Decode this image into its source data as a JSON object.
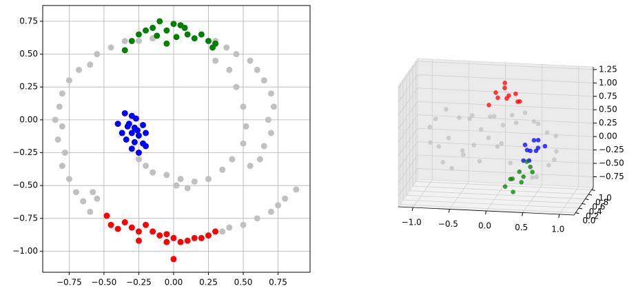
{
  "chart_data": [
    {
      "type": "scatter",
      "grid": true,
      "xlim": [
        -0.94,
        0.98
      ],
      "ylim": [
        -1.16,
        0.87
      ],
      "xticks": [
        {
          "value": -0.75,
          "label": "−0.75"
        },
        {
          "value": -0.5,
          "label": "−0.50"
        },
        {
          "value": -0.25,
          "label": "−0.25"
        },
        {
          "value": 0,
          "label": "0.00"
        },
        {
          "value": 0.25,
          "label": "0.25"
        },
        {
          "value": 0.5,
          "label": "0.50"
        },
        {
          "value": 0.75,
          "label": "0.75"
        }
      ],
      "yticks": [
        {
          "value": -1,
          "label": "−1.00"
        },
        {
          "value": -0.75,
          "label": "−0.75"
        },
        {
          "value": -0.5,
          "label": "−0.50"
        },
        {
          "value": -0.25,
          "label": "−0.25"
        },
        {
          "value": 0,
          "label": "0.00"
        },
        {
          "value": 0.25,
          "label": "0.25"
        },
        {
          "value": 0.5,
          "label": "0.50"
        },
        {
          "value": 0.75,
          "label": "0.75"
        }
      ],
      "series": [
        {
          "color": "#c0c0c0",
          "x": [
            -0.15,
            -0.25,
            -0.35,
            -0.45,
            -0.55,
            -0.6,
            -0.68,
            -0.75,
            -0.8,
            -0.82,
            -0.85,
            -0.8,
            -0.83,
            -0.78,
            -0.8,
            -0.75,
            -0.7,
            -0.65,
            -0.6,
            0.3,
            0.38,
            0.45,
            0.55,
            0.6,
            0.65,
            0.7,
            0.72,
            0.68,
            0.7,
            0.65,
            0.62,
            0.55,
            0.88,
            0.8,
            0.75,
            0.7,
            0.6,
            0.5,
            0.4,
            0.35,
            -0.25,
            -0.2,
            -0.15,
            -0.05,
            0.05,
            0.15,
            0.25,
            0.35,
            0.42,
            0.5,
            0.52,
            0.5,
            0.45,
            0.4,
            0.3,
            0.02,
            0.1,
            -0.58,
            -0.55
          ],
          "y": [
            0.62,
            0.6,
            0.6,
            0.55,
            0.5,
            0.42,
            0.38,
            0.3,
            0.2,
            0.1,
            0.0,
            -0.05,
            -0.15,
            -0.25,
            -0.35,
            -0.45,
            -0.55,
            -0.62,
            -0.7,
            0.6,
            0.55,
            0.5,
            0.45,
            0.38,
            0.3,
            0.2,
            0.1,
            0.0,
            -0.1,
            -0.2,
            -0.3,
            -0.35,
            -0.53,
            -0.6,
            -0.65,
            -0.7,
            -0.75,
            -0.8,
            -0.82,
            -0.85,
            -0.3,
            -0.35,
            -0.4,
            -0.42,
            -0.45,
            -0.47,
            -0.45,
            -0.38,
            -0.3,
            -0.18,
            -0.05,
            0.1,
            0.25,
            0.38,
            0.45,
            -0.5,
            -0.52,
            -0.55,
            -0.6
          ]
        },
        {
          "color": "#0000ff",
          "x": [
            -0.35,
            -0.3,
            -0.27,
            -0.4,
            -0.33,
            -0.28,
            -0.22,
            -0.37,
            -0.3,
            -0.25,
            -0.2,
            -0.34,
            -0.28,
            -0.22,
            -0.3,
            -0.25,
            -0.2,
            -0.32,
            -0.26
          ],
          "y": [
            0.05,
            0.03,
            0.01,
            -0.03,
            -0.05,
            -0.06,
            -0.04,
            -0.1,
            -0.1,
            -0.12,
            -0.1,
            -0.15,
            -0.17,
            -0.18,
            -0.22,
            -0.25,
            -0.2,
            -0.03,
            -0.08
          ]
        },
        {
          "color": "#008000",
          "x": [
            -0.35,
            -0.3,
            -0.25,
            -0.2,
            -0.15,
            -0.1,
            -0.05,
            0.0,
            0.05,
            0.1,
            0.15,
            0.2,
            0.25,
            0.3,
            -0.05,
            0.08,
            -0.12,
            0.28,
            0.02
          ],
          "y": [
            0.53,
            0.6,
            0.65,
            0.68,
            0.7,
            0.75,
            0.68,
            0.73,
            0.72,
            0.65,
            0.62,
            0.65,
            0.6,
            0.58,
            0.58,
            0.7,
            0.64,
            0.55,
            0.63
          ]
        },
        {
          "color": "#ff0000",
          "x": [
            -0.48,
            -0.45,
            -0.4,
            -0.35,
            -0.3,
            -0.25,
            -0.2,
            -0.15,
            -0.1,
            -0.05,
            0.0,
            0.05,
            0.1,
            0.15,
            0.2,
            0.25,
            0.3,
            -0.25,
            -0.05,
            0.0
          ],
          "y": [
            -0.73,
            -0.8,
            -0.83,
            -0.78,
            -0.82,
            -0.85,
            -0.8,
            -0.85,
            -0.88,
            -0.87,
            -0.9,
            -0.93,
            -0.92,
            -0.9,
            -0.9,
            -0.88,
            -0.85,
            -0.92,
            -0.93,
            -1.06
          ]
        }
      ]
    },
    {
      "type": "scatter3d",
      "xlim": [
        -1.2,
        1.2
      ],
      "ylim": [
        -0.1,
        1.1
      ],
      "zlim": [
        -0.95,
        1.3
      ],
      "xticks": [
        {
          "value": -1,
          "label": "−1.0"
        },
        {
          "value": -0.5,
          "label": "−0.5"
        },
        {
          "value": 0,
          "label": "0.0"
        },
        {
          "value": 0.5,
          "label": "0.5"
        },
        {
          "value": 1,
          "label": "1.0"
        }
      ],
      "yticks": [
        {
          "value": 0,
          "label": "0.0"
        },
        {
          "value": 0.2,
          "label": "0.2"
        },
        {
          "value": 0.4,
          "label": "0.4"
        },
        {
          "value": 0.6,
          "label": "0.6"
        },
        {
          "value": 0.8,
          "label": "0.8"
        },
        {
          "value": 1,
          "label": "1.0"
        }
      ],
      "zticks": [
        {
          "value": -0.75,
          "label": "−0.75"
        },
        {
          "value": -0.5,
          "label": "−0.50"
        },
        {
          "value": -0.25,
          "label": "−0.25"
        },
        {
          "value": 0,
          "label": "0.00"
        },
        {
          "value": 0.25,
          "label": "0.25"
        },
        {
          "value": 0.5,
          "label": "0.50"
        },
        {
          "value": 0.75,
          "label": "0.75"
        },
        {
          "value": 1,
          "label": "1.00"
        },
        {
          "value": 1.25,
          "label": "1.25"
        }
      ],
      "series": [
        {
          "color": "#c0c0c0",
          "x": [
            -0.9,
            -0.8,
            -0.7,
            -0.6,
            -0.5,
            -0.4,
            -0.3,
            -0.2,
            -0.1,
            0.0,
            0.1,
            0.2,
            0.3,
            0.4,
            0.5,
            0.6,
            0.7,
            0.8,
            0.85,
            0.8,
            0.7,
            -0.8,
            -0.7,
            -0.6,
            -0.5,
            -0.4,
            -0.3,
            -0.2,
            0.0,
            0.1,
            0.2,
            -0.1,
            0.6,
            0.5,
            -0.85
          ],
          "y": [
            0.5,
            0.4,
            0.6,
            0.3,
            0.5,
            0.7,
            0.4,
            0.5,
            0.6,
            0.4,
            0.5,
            0.6,
            0.4,
            0.5,
            0.6,
            0.4,
            0.5,
            0.6,
            0.4,
            0.5,
            0.6,
            0.6,
            0.4,
            0.5,
            0.7,
            0.3,
            0.5,
            0.4,
            0.6,
            0.4,
            0.5,
            0.5,
            0.3,
            0.5,
            0.3
          ],
          "z": [
            0.3,
            0.5,
            0.6,
            0.2,
            0.5,
            0.4,
            0.6,
            0.3,
            0.5,
            0.6,
            0.4,
            0.55,
            0.5,
            0.65,
            0.45,
            0.5,
            0.3,
            0.2,
            0.0,
            -0.2,
            -0.35,
            -0.1,
            -0.3,
            -0.45,
            -0.2,
            -0.1,
            0.0,
            -0.25,
            -0.05,
            0.1,
            -0.3,
            0.15,
            -0.45,
            -0.55,
            0.1
          ]
        },
        {
          "color": "#ff0000",
          "x": [
            0.0,
            0.05,
            0.1,
            0.15,
            0.2,
            0.25,
            -0.05,
            0.3,
            0.08,
            0.35
          ],
          "y": [
            0.5,
            0.4,
            0.6,
            0.5,
            0.4,
            0.6,
            0.3,
            0.5,
            0.7,
            0.4
          ],
          "z": [
            1.0,
            0.95,
            1.05,
            0.9,
            1.0,
            0.95,
            0.85,
            0.85,
            1.1,
            0.9
          ]
        },
        {
          "color": "#0000ff",
          "x": [
            0.4,
            0.45,
            0.5,
            0.55,
            0.6,
            0.5,
            0.65,
            0.45,
            0.58,
            0.4
          ],
          "y": [
            0.5,
            0.4,
            0.6,
            0.5,
            0.4,
            0.3,
            0.6,
            0.6,
            0.5,
            0.4
          ],
          "z": [
            0.05,
            0.0,
            0.1,
            -0.05,
            0.05,
            -0.15,
            0.0,
            -0.1,
            0.15,
            -0.2
          ]
        },
        {
          "color": "#008000",
          "x": [
            0.2,
            0.25,
            0.3,
            0.35,
            0.4,
            0.45,
            0.15,
            0.5,
            0.28,
            0.38
          ],
          "y": [
            0.5,
            0.4,
            0.6,
            0.5,
            0.4,
            0.6,
            0.4,
            0.5,
            0.3,
            0.7
          ],
          "z": [
            -0.6,
            -0.55,
            -0.5,
            -0.65,
            -0.5,
            -0.4,
            -0.7,
            -0.45,
            -0.75,
            -0.35
          ]
        }
      ]
    }
  ]
}
